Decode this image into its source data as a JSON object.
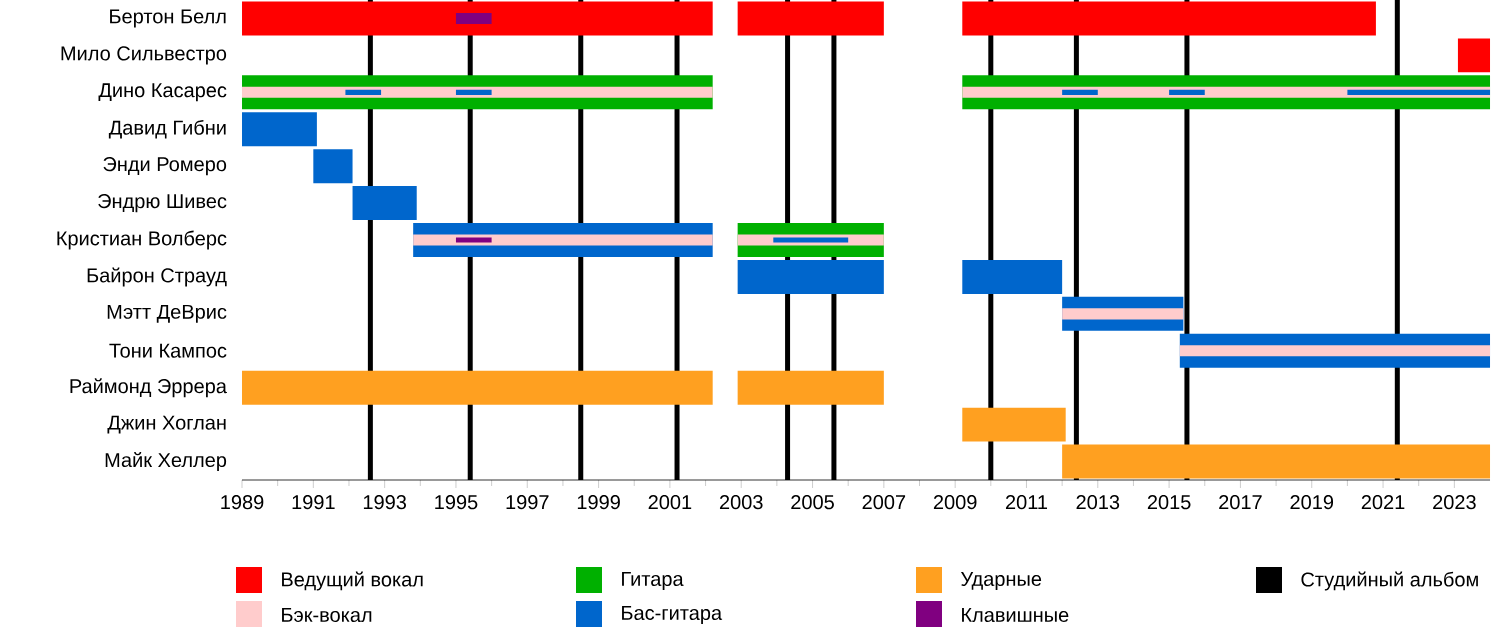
{
  "chart_data": {
    "type": "bar",
    "orientation": "horizontal",
    "legend": "bottom",
    "categories": [
      "Бертон Белл",
      "Мило Сильвестро",
      "Дино Касарес",
      "Давид Гибни",
      "Энди Ромеро",
      "Эндрю Шивес",
      "Кристиан Волберс",
      "Байрон Страуд",
      "Мэтт ДеВрис",
      "Тони Кампос",
      "Раймонд Эррера",
      "Джин Хоглан",
      "Майк Хеллер"
    ],
    "xlim": [
      1989,
      2024
    ],
    "xticks": [
      1989,
      1991,
      1993,
      1995,
      1997,
      1999,
      2001,
      2003,
      2005,
      2007,
      2009,
      2011,
      2013,
      2015,
      2017,
      2019,
      2021,
      2023
    ],
    "series": [
      {
        "name": "Ведущий вокал",
        "color": "#ff0000",
        "base": [
          1989,
          2023.1,
          null,
          null,
          null,
          null,
          null,
          null,
          null,
          null,
          null,
          null,
          null
        ],
        "values": [
          13.2,
          0.9,
          null,
          null,
          null,
          null,
          null,
          null,
          null,
          null,
          null,
          null,
          null
        ]
      },
      {
        "color": "#ff0000",
        "base": [
          2002.9,
          null,
          null,
          null,
          null,
          null,
          null,
          null,
          null,
          null,
          null,
          null,
          null
        ],
        "values": [
          4.1,
          null,
          null,
          null,
          null,
          null,
          null,
          null,
          null,
          null,
          null,
          null,
          null
        ]
      },
      {
        "color": "#ff0000",
        "base": [
          2009.2,
          null,
          null,
          null,
          null,
          null,
          null,
          null,
          null,
          null,
          null,
          null,
          null
        ],
        "values": [
          11.6,
          null,
          null,
          null,
          null,
          null,
          null,
          null,
          null,
          null,
          null,
          null,
          null
        ]
      },
      {
        "name": "Бэк-вокал",
        "color": "#ffcccc",
        "base": [
          null,
          null,
          1989,
          null,
          null,
          null,
          1993.8,
          null,
          2012,
          2015.3,
          null,
          null,
          null
        ],
        "values": [
          null,
          null,
          13.2,
          null,
          null,
          null,
          8.4,
          null,
          3.4,
          8.7,
          null,
          null,
          null
        ]
      },
      {
        "color": "#ffcccc",
        "base": [
          null,
          null,
          2009.2,
          null,
          null,
          null,
          2002.9,
          null,
          null,
          null,
          null,
          null,
          null
        ],
        "values": [
          null,
          null,
          14.8,
          null,
          null,
          null,
          4.1,
          null,
          null,
          null,
          null,
          null,
          null
        ]
      },
      {
        "name": "Гитара",
        "color": "#00b000",
        "base": [
          null,
          null,
          1989,
          null,
          null,
          null,
          2002.9,
          null,
          null,
          null,
          null,
          null,
          null
        ],
        "values": [
          null,
          null,
          13.2,
          null,
          null,
          null,
          4.1,
          null,
          null,
          null,
          null,
          null,
          null
        ]
      },
      {
        "color": "#00b000",
        "base": [
          null,
          null,
          2009.2,
          null,
          null,
          null,
          null,
          null,
          null,
          null,
          null,
          null,
          null
        ],
        "values": [
          null,
          null,
          14.8,
          null,
          null,
          null,
          null,
          null,
          null,
          null,
          null,
          null,
          null
        ]
      },
      {
        "name": "Бас-гитара",
        "color": "#0066cc",
        "base": [
          null,
          null,
          null,
          1989,
          1991,
          1992.1,
          1993.8,
          2002.9,
          2012,
          2015.3,
          null,
          null,
          null
        ],
        "values": [
          null,
          null,
          null,
          2.1,
          1.1,
          1.8,
          8.4,
          4.1,
          3.4,
          8.7,
          null,
          null,
          null
        ]
      },
      {
        "color": "#0066cc",
        "base": [
          null,
          null,
          1991.9,
          null,
          null,
          null,
          2003.9,
          2009.2,
          null,
          null,
          null,
          null,
          null
        ],
        "values": [
          null,
          null,
          1.0,
          null,
          null,
          null,
          2.1,
          2.8,
          null,
          null,
          null,
          null,
          null
        ]
      },
      {
        "color": "#0066cc",
        "base": [
          null,
          null,
          1995,
          null,
          null,
          null,
          null,
          null,
          null,
          null,
          null,
          null,
          null
        ],
        "values": [
          null,
          null,
          1.0,
          null,
          null,
          null,
          null,
          null,
          null,
          null,
          null,
          null,
          null
        ]
      },
      {
        "color": "#0066cc",
        "base": [
          null,
          null,
          2012,
          null,
          null,
          null,
          null,
          null,
          null,
          null,
          null,
          null,
          null
        ],
        "values": [
          null,
          null,
          1.0,
          null,
          null,
          null,
          null,
          null,
          null,
          null,
          null,
          null,
          null
        ]
      },
      {
        "color": "#0066cc",
        "base": [
          null,
          null,
          2015,
          null,
          null,
          null,
          null,
          null,
          null,
          null,
          null,
          null,
          null
        ],
        "values": [
          null,
          null,
          1.0,
          null,
          null,
          null,
          null,
          null,
          null,
          null,
          null,
          null,
          null
        ]
      },
      {
        "color": "#0066cc",
        "base": [
          null,
          null,
          2020,
          null,
          null,
          null,
          null,
          null,
          null,
          null,
          null,
          null,
          null
        ],
        "values": [
          null,
          null,
          4.0,
          null,
          null,
          null,
          null,
          null,
          null,
          null,
          null,
          null,
          null
        ]
      },
      {
        "name": "Ударные",
        "color": "#ffa020",
        "base": [
          null,
          null,
          null,
          null,
          null,
          null,
          null,
          null,
          null,
          null,
          1989,
          2009.2,
          2012
        ],
        "values": [
          null,
          null,
          null,
          null,
          null,
          null,
          null,
          null,
          null,
          null,
          13.2,
          2.9,
          12.0
        ]
      },
      {
        "color": "#ffa020",
        "base": [
          null,
          null,
          null,
          null,
          null,
          null,
          null,
          null,
          null,
          null,
          2002.9,
          null,
          null
        ],
        "values": [
          null,
          null,
          null,
          null,
          null,
          null,
          null,
          null,
          null,
          null,
          4.1,
          null,
          null
        ]
      },
      {
        "name": "Клавишные",
        "color": "#800080",
        "base": [
          1995,
          null,
          null,
          null,
          null,
          null,
          1995,
          null,
          null,
          null,
          null,
          null,
          null
        ],
        "values": [
          1.0,
          null,
          null,
          null,
          null,
          null,
          1.0,
          null,
          null,
          null,
          null,
          null,
          null
        ]
      }
    ],
    "ref_lines": [
      {
        "axis": "x",
        "value": 1992.6,
        "label": "Студийный альбом",
        "color": "#000000"
      },
      {
        "axis": "x",
        "value": 1995.4,
        "color": "#000000"
      },
      {
        "axis": "x",
        "value": 1998.5,
        "color": "#000000"
      },
      {
        "axis": "x",
        "value": 2001.2,
        "color": "#000000"
      },
      {
        "axis": "x",
        "value": 2004.3,
        "color": "#000000"
      },
      {
        "axis": "x",
        "value": 2005.6,
        "color": "#000000"
      },
      {
        "axis": "x",
        "value": 2010.0,
        "color": "#000000"
      },
      {
        "axis": "x",
        "value": 2012.4,
        "color": "#000000"
      },
      {
        "axis": "x",
        "value": 2015.5,
        "color": "#000000"
      },
      {
        "axis": "x",
        "value": 2021.4,
        "color": "#000000"
      }
    ]
  }
}
